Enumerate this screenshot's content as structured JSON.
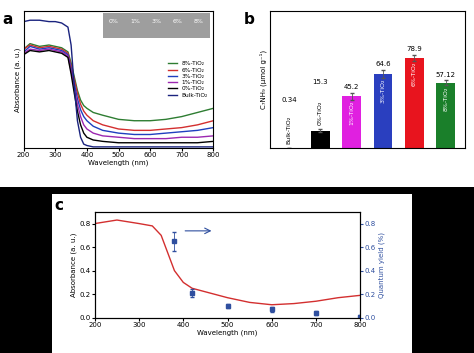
{
  "chart_data": [
    {
      "type": "line",
      "title": "a",
      "x_label": "Wavelength (nm)",
      "y_label": "Absorbance (a. u.)",
      "x": [
        200,
        220,
        250,
        280,
        300,
        320,
        340,
        350,
        360,
        370,
        380,
        390,
        400,
        420,
        450,
        500,
        550,
        600,
        650,
        700,
        750,
        800
      ],
      "series": [
        {
          "name": "8%-TiO₂",
          "color": "#2e7d32",
          "values": [
            0.72,
            0.76,
            0.74,
            0.75,
            0.74,
            0.73,
            0.7,
            0.62,
            0.52,
            0.42,
            0.35,
            0.31,
            0.29,
            0.26,
            0.24,
            0.21,
            0.2,
            0.2,
            0.21,
            0.23,
            0.26,
            0.29
          ]
        },
        {
          "name": "6%-TiO₂",
          "color": "#d32f2f",
          "values": [
            0.72,
            0.75,
            0.73,
            0.74,
            0.73,
            0.72,
            0.69,
            0.6,
            0.5,
            0.4,
            0.32,
            0.27,
            0.24,
            0.2,
            0.17,
            0.14,
            0.13,
            0.13,
            0.14,
            0.15,
            0.17,
            0.2
          ]
        },
        {
          "name": "3%-TiO₂",
          "color": "#1f3fbf",
          "values": [
            0.7,
            0.74,
            0.72,
            0.73,
            0.72,
            0.71,
            0.68,
            0.58,
            0.47,
            0.36,
            0.28,
            0.23,
            0.2,
            0.16,
            0.13,
            0.11,
            0.1,
            0.1,
            0.11,
            0.12,
            0.13,
            0.15
          ]
        },
        {
          "name": "1%-TiO₂",
          "color": "#9c27b0",
          "values": [
            0.69,
            0.72,
            0.71,
            0.72,
            0.71,
            0.7,
            0.67,
            0.56,
            0.44,
            0.32,
            0.23,
            0.17,
            0.14,
            0.11,
            0.09,
            0.08,
            0.07,
            0.07,
            0.07,
            0.08,
            0.08,
            0.09
          ]
        },
        {
          "name": "0%-TiO₂",
          "color": "#000000",
          "values": [
            0.68,
            0.71,
            0.7,
            0.71,
            0.7,
            0.69,
            0.66,
            0.54,
            0.4,
            0.27,
            0.17,
            0.11,
            0.08,
            0.06,
            0.05,
            0.04,
            0.04,
            0.04,
            0.04,
            0.04,
            0.04,
            0.05
          ]
        },
        {
          "name": "Bulk-TiO₂",
          "color": "#1a237e",
          "values": [
            0.92,
            0.93,
            0.93,
            0.92,
            0.92,
            0.91,
            0.88,
            0.75,
            0.45,
            0.2,
            0.08,
            0.03,
            0.02,
            0.01,
            0.01,
            0.01,
            0.01,
            0.01,
            0.01,
            0.01,
            0.01,
            0.01
          ]
        }
      ],
      "annotations": [
        "0%",
        "1%",
        "3%",
        "6%",
        "8%"
      ],
      "xlim": [
        200,
        800
      ],
      "xticks": [
        200,
        300,
        400,
        500,
        600,
        700,
        800
      ],
      "ylim": [
        0,
        1
      ],
      "tick_labels": "x",
      "legend": "center right"
    },
    {
      "type": "bar",
      "title": "b",
      "y_label": "C₇NH₉ (μmol g⁻¹)",
      "categories": [
        "Bulk-TiO₂",
        "0%-TiO₂",
        "1%-TiO₂",
        "3%-TiO₂",
        "6%-TiO₂",
        "8%-TiO₂"
      ],
      "values": [
        0.34,
        15.3,
        45.2,
        64.6,
        78.9,
        57.12
      ],
      "errors": [
        0.05,
        1.5,
        3,
        3.5,
        2.5,
        2
      ],
      "colors": [
        "#000000",
        "#000000",
        "#e020e0",
        "#2a3fbf",
        "#e8141e",
        "#1a7f2a"
      ],
      "ylim": [
        0,
        120
      ],
      "tick_labels": false,
      "data_labels": true
    },
    {
      "type": "line",
      "title": "c",
      "x_label": "Wavelength (nm)",
      "y_label": "Absorbance (a. u.)",
      "y2_label": "Quantum yield (%)",
      "series": [
        {
          "type": "line",
          "color": "#d32f2f",
          "x": [
            200,
            250,
            300,
            330,
            350,
            370,
            380,
            400,
            420,
            450,
            500,
            550,
            600,
            650,
            700,
            750,
            800
          ],
          "values": [
            0.8,
            0.83,
            0.8,
            0.78,
            0.7,
            0.5,
            0.4,
            0.3,
            0.25,
            0.22,
            0.17,
            0.13,
            0.11,
            0.12,
            0.14,
            0.17,
            0.19
          ]
        },
        {
          "type": "scatter",
          "axis": "y2",
          "color": "#2f4f9f",
          "marker": "square",
          "x": [
            380,
            420,
            500,
            600,
            700,
            800
          ],
          "values": [
            0.65,
            0.21,
            0.1,
            0.07,
            0.04,
            0.01
          ],
          "errors": [
            0.08,
            0.03,
            0.02,
            0.02,
            0.02,
            0.01
          ]
        }
      ],
      "xlim": [
        200,
        800
      ],
      "xticks": [
        200,
        300,
        400,
        500,
        600,
        700,
        800
      ],
      "ylim": [
        0,
        0.9
      ],
      "yticks": [
        0.0,
        0.2,
        0.4,
        0.6,
        0.8
      ],
      "y2lim": [
        0,
        0.9
      ],
      "y2ticks": [
        0.0,
        0.2,
        0.4,
        0.6,
        0.8
      ]
    }
  ]
}
